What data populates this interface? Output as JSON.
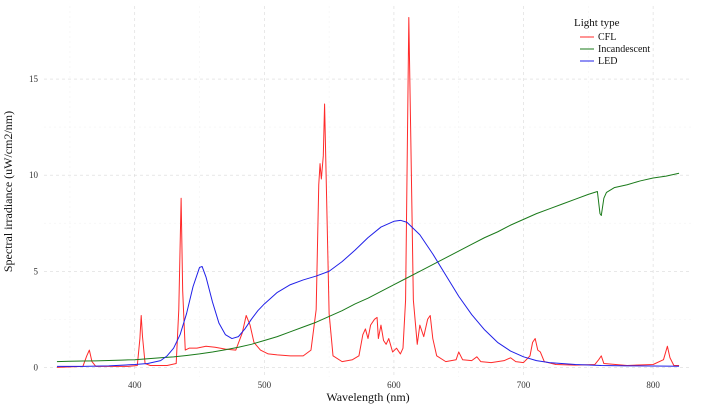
{
  "chart_data": {
    "type": "line",
    "xlabel": "Wavelength (nm)",
    "ylabel": "Spectral irradiance (uW/cm2/nm)",
    "xlim": [
      330,
      830
    ],
    "ylim": [
      -0.5,
      18.8
    ],
    "xticks": [
      400,
      500,
      600,
      700,
      800
    ],
    "yticks": [
      0,
      5,
      10,
      15
    ],
    "grid": true,
    "legend": {
      "title": "Light type",
      "placement": "top-right"
    },
    "series": [
      {
        "name": "CFL",
        "color": "#ff2a2a",
        "points": [
          [
            340,
            0.0
          ],
          [
            360,
            0.05
          ],
          [
            363,
            0.6
          ],
          [
            365,
            0.9
          ],
          [
            367,
            0.3
          ],
          [
            370,
            0.05
          ],
          [
            395,
            0.05
          ],
          [
            402,
            0.1
          ],
          [
            404,
            1.5
          ],
          [
            405,
            2.7
          ],
          [
            406,
            1.6
          ],
          [
            408,
            0.2
          ],
          [
            412,
            0.1
          ],
          [
            425,
            0.1
          ],
          [
            432,
            0.2
          ],
          [
            434,
            3.0
          ],
          [
            435.8,
            8.8
          ],
          [
            437,
            4.0
          ],
          [
            439,
            0.9
          ],
          [
            442,
            1.0
          ],
          [
            448,
            1.0
          ],
          [
            455,
            1.1
          ],
          [
            462,
            1.05
          ],
          [
            470,
            0.95
          ],
          [
            478,
            0.9
          ],
          [
            483,
            1.8
          ],
          [
            486,
            2.7
          ],
          [
            489,
            2.2
          ],
          [
            492,
            1.3
          ],
          [
            497,
            0.9
          ],
          [
            503,
            0.7
          ],
          [
            510,
            0.65
          ],
          [
            520,
            0.6
          ],
          [
            530,
            0.6
          ],
          [
            536,
            0.9
          ],
          [
            540,
            3.0
          ],
          [
            542,
            9.5
          ],
          [
            543,
            10.6
          ],
          [
            544,
            9.8
          ],
          [
            545.5,
            11.0
          ],
          [
            546.5,
            13.7
          ],
          [
            548,
            9.0
          ],
          [
            550,
            2.8
          ],
          [
            553,
            0.6
          ],
          [
            560,
            0.3
          ],
          [
            568,
            0.4
          ],
          [
            573,
            0.6
          ],
          [
            576,
            1.7
          ],
          [
            578,
            2.0
          ],
          [
            580,
            1.5
          ],
          [
            582,
            2.2
          ],
          [
            585,
            2.5
          ],
          [
            587,
            2.6
          ],
          [
            588,
            1.5
          ],
          [
            590,
            2.2
          ],
          [
            592,
            1.4
          ],
          [
            594,
            1.2
          ],
          [
            596,
            1.5
          ],
          [
            599,
            0.8
          ],
          [
            602,
            1.0
          ],
          [
            605,
            0.7
          ],
          [
            607,
            1.0
          ],
          [
            609,
            3.5
          ],
          [
            611.5,
            18.2
          ],
          [
            613,
            12.0
          ],
          [
            615,
            3.5
          ],
          [
            618,
            1.2
          ],
          [
            620,
            2.2
          ],
          [
            623,
            1.6
          ],
          [
            626,
            2.5
          ],
          [
            628,
            2.7
          ],
          [
            630,
            1.5
          ],
          [
            633,
            0.6
          ],
          [
            640,
            0.3
          ],
          [
            648,
            0.4
          ],
          [
            650,
            0.8
          ],
          [
            653,
            0.4
          ],
          [
            660,
            0.35
          ],
          [
            664,
            0.55
          ],
          [
            667,
            0.3
          ],
          [
            675,
            0.25
          ],
          [
            685,
            0.35
          ],
          [
            690,
            0.5
          ],
          [
            694,
            0.3
          ],
          [
            700,
            0.25
          ],
          [
            705,
            0.6
          ],
          [
            707,
            1.3
          ],
          [
            709,
            1.5
          ],
          [
            711,
            0.9
          ],
          [
            713,
            0.8
          ],
          [
            716,
            0.3
          ],
          [
            725,
            0.15
          ],
          [
            740,
            0.12
          ],
          [
            755,
            0.15
          ],
          [
            758,
            0.4
          ],
          [
            760,
            0.6
          ],
          [
            762,
            0.2
          ],
          [
            780,
            0.1
          ],
          [
            800,
            0.15
          ],
          [
            808,
            0.4
          ],
          [
            811,
            1.1
          ],
          [
            813,
            0.5
          ],
          [
            816,
            0.1
          ],
          [
            820,
            0.1
          ]
        ]
      },
      {
        "name": "Incandescent",
        "color": "#1a7a1a",
        "points": [
          [
            340,
            0.3
          ],
          [
            350,
            0.32
          ],
          [
            360,
            0.33
          ],
          [
            370,
            0.34
          ],
          [
            380,
            0.36
          ],
          [
            390,
            0.38
          ],
          [
            400,
            0.4
          ],
          [
            410,
            0.45
          ],
          [
            420,
            0.5
          ],
          [
            430,
            0.55
          ],
          [
            440,
            0.62
          ],
          [
            450,
            0.7
          ],
          [
            460,
            0.8
          ],
          [
            470,
            0.92
          ],
          [
            480,
            1.05
          ],
          [
            490,
            1.2
          ],
          [
            500,
            1.4
          ],
          [
            510,
            1.6
          ],
          [
            520,
            1.85
          ],
          [
            530,
            2.1
          ],
          [
            540,
            2.35
          ],
          [
            550,
            2.65
          ],
          [
            560,
            2.95
          ],
          [
            570,
            3.3
          ],
          [
            580,
            3.6
          ],
          [
            590,
            3.95
          ],
          [
            600,
            4.3
          ],
          [
            610,
            4.65
          ],
          [
            620,
            5.0
          ],
          [
            630,
            5.35
          ],
          [
            640,
            5.7
          ],
          [
            650,
            6.05
          ],
          [
            660,
            6.4
          ],
          [
            670,
            6.75
          ],
          [
            680,
            7.05
          ],
          [
            690,
            7.4
          ],
          [
            700,
            7.7
          ],
          [
            710,
            8.0
          ],
          [
            720,
            8.25
          ],
          [
            730,
            8.5
          ],
          [
            740,
            8.75
          ],
          [
            750,
            9.0
          ],
          [
            757,
            9.15
          ],
          [
            759,
            8.0
          ],
          [
            760,
            7.9
          ],
          [
            762,
            8.8
          ],
          [
            764,
            9.1
          ],
          [
            770,
            9.35
          ],
          [
            780,
            9.5
          ],
          [
            790,
            9.7
          ],
          [
            800,
            9.85
          ],
          [
            810,
            9.95
          ],
          [
            820,
            10.1
          ]
        ]
      },
      {
        "name": "LED",
        "color": "#2020e8",
        "points": [
          [
            340,
            0.05
          ],
          [
            360,
            0.05
          ],
          [
            380,
            0.08
          ],
          [
            400,
            0.15
          ],
          [
            410,
            0.2
          ],
          [
            420,
            0.35
          ],
          [
            425,
            0.6
          ],
          [
            430,
            1.0
          ],
          [
            435,
            1.7
          ],
          [
            440,
            2.8
          ],
          [
            445,
            4.2
          ],
          [
            450,
            5.2
          ],
          [
            452,
            5.25
          ],
          [
            455,
            4.7
          ],
          [
            460,
            3.4
          ],
          [
            465,
            2.3
          ],
          [
            470,
            1.7
          ],
          [
            475,
            1.5
          ],
          [
            480,
            1.6
          ],
          [
            485,
            2.0
          ],
          [
            490,
            2.5
          ],
          [
            495,
            2.95
          ],
          [
            500,
            3.3
          ],
          [
            510,
            3.9
          ],
          [
            520,
            4.3
          ],
          [
            530,
            4.55
          ],
          [
            540,
            4.75
          ],
          [
            550,
            5.0
          ],
          [
            560,
            5.5
          ],
          [
            570,
            6.1
          ],
          [
            580,
            6.75
          ],
          [
            590,
            7.3
          ],
          [
            600,
            7.6
          ],
          [
            605,
            7.65
          ],
          [
            610,
            7.55
          ],
          [
            620,
            6.9
          ],
          [
            630,
            5.9
          ],
          [
            640,
            4.8
          ],
          [
            650,
            3.7
          ],
          [
            660,
            2.75
          ],
          [
            670,
            1.95
          ],
          [
            680,
            1.3
          ],
          [
            690,
            0.85
          ],
          [
            700,
            0.55
          ],
          [
            710,
            0.35
          ],
          [
            720,
            0.25
          ],
          [
            740,
            0.15
          ],
          [
            760,
            0.1
          ],
          [
            780,
            0.08
          ],
          [
            800,
            0.07
          ],
          [
            820,
            0.06
          ]
        ]
      }
    ]
  }
}
